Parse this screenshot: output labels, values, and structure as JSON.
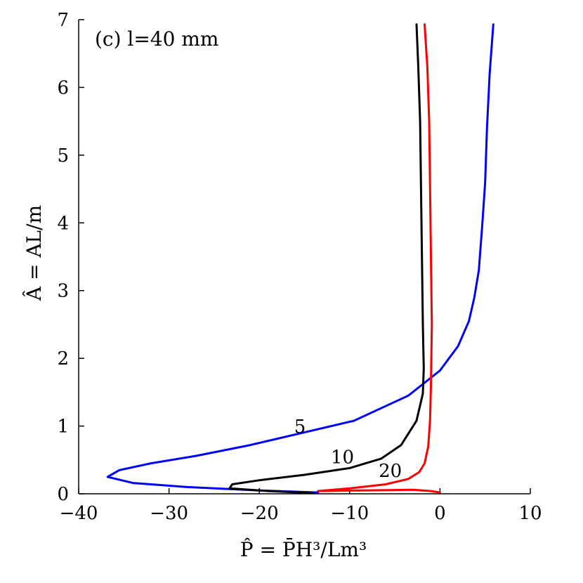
{
  "chart_data": {
    "type": "line",
    "annotation": "(c) l=40 mm",
    "xlabel": "P̂ = P̄H³/Lm³",
    "ylabel": "Â = AL/m",
    "xlim": [
      -40,
      10
    ],
    "ylim": [
      0,
      7
    ],
    "xticks": [
      -40,
      -30,
      -20,
      -10,
      0,
      10
    ],
    "yticks": [
      0,
      1,
      2,
      3,
      4,
      5,
      6,
      7
    ],
    "xtick_labels": [
      "−40",
      "−30",
      "−20",
      "−10",
      "0",
      "10"
    ],
    "ytick_labels": [
      "0",
      "1",
      "2",
      "3",
      "4",
      "5",
      "6",
      "7"
    ],
    "grid": false,
    "series": [
      {
        "name": "5",
        "color": "#0000ff",
        "points": [
          [
            -13.5,
            0.02
          ],
          [
            -20,
            0.05
          ],
          [
            -28,
            0.1
          ],
          [
            -34,
            0.16
          ],
          [
            -36.8,
            0.25
          ],
          [
            -35.5,
            0.35
          ],
          [
            -32,
            0.45
          ],
          [
            -27,
            0.56
          ],
          [
            -21,
            0.72
          ],
          [
            -9.5,
            1.08
          ],
          [
            -3.5,
            1.45
          ],
          [
            0,
            1.82
          ],
          [
            2,
            2.18
          ],
          [
            3.2,
            2.55
          ],
          [
            3.8,
            2.9
          ],
          [
            4.3,
            3.3
          ],
          [
            4.7,
            4.0
          ],
          [
            5.0,
            4.6
          ],
          [
            5.2,
            5.4
          ],
          [
            5.5,
            6.2
          ],
          [
            5.9,
            6.93
          ]
        ]
      },
      {
        "name": "10",
        "color": "#000000",
        "points": [
          [
            -14,
            0.01
          ],
          [
            -19,
            0.04
          ],
          [
            -23.3,
            0.08
          ],
          [
            -23,
            0.14
          ],
          [
            -20,
            0.2
          ],
          [
            -15,
            0.28
          ],
          [
            -10,
            0.38
          ],
          [
            -6.5,
            0.52
          ],
          [
            -4.3,
            0.72
          ],
          [
            -2.6,
            1.08
          ],
          [
            -1.9,
            1.48
          ],
          [
            -1.8,
            1.85
          ],
          [
            -1.9,
            2.5
          ],
          [
            -2.0,
            3.5
          ],
          [
            -2.1,
            4.5
          ],
          [
            -2.2,
            5.5
          ],
          [
            -2.4,
            6.3
          ],
          [
            -2.6,
            6.93
          ]
        ]
      },
      {
        "name": "20",
        "color": "#ff0000",
        "points": [
          [
            0,
            0.02
          ],
          [
            -1,
            0.04
          ],
          [
            -3,
            0.06
          ],
          [
            -13.5,
            0.04
          ],
          [
            -10,
            0.08
          ],
          [
            -6,
            0.14
          ],
          [
            -3.5,
            0.22
          ],
          [
            -2.3,
            0.32
          ],
          [
            -1.7,
            0.45
          ],
          [
            -1.3,
            0.7
          ],
          [
            -1.1,
            1.1
          ],
          [
            -1.0,
            1.6
          ],
          [
            -0.9,
            2.5
          ],
          [
            -1.0,
            3.5
          ],
          [
            -1.1,
            4.5
          ],
          [
            -1.2,
            5.5
          ],
          [
            -1.4,
            6.3
          ],
          [
            -1.7,
            6.93
          ]
        ]
      }
    ],
    "series_label_positions": [
      {
        "text": "5",
        "x": -15.5,
        "y": 0.9
      },
      {
        "text": "10",
        "x": -10.8,
        "y": 0.45
      },
      {
        "text": "20",
        "x": -5.5,
        "y": 0.25
      }
    ]
  }
}
